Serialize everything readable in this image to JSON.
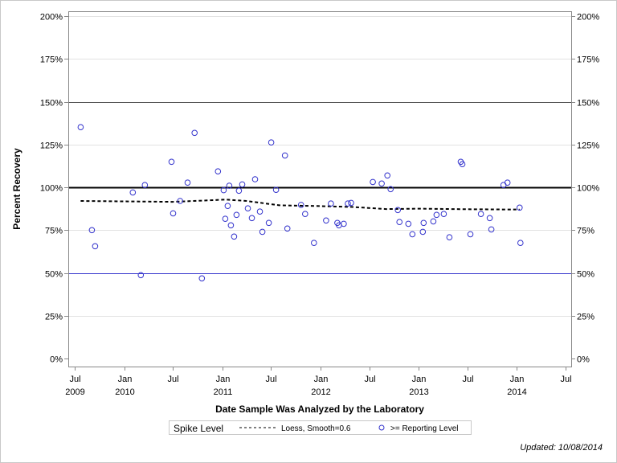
{
  "chart_data": {
    "type": "scatter",
    "title": "",
    "xlabel": "Date Sample Was Analyzed by the Laboratory",
    "ylabel": "Percent Recovery",
    "xlim": [
      "2009-06-01",
      "2014-08-01"
    ],
    "ylim": [
      0,
      200
    ],
    "y_ticks": [
      "0%",
      "25%",
      "50%",
      "75%",
      "100%",
      "125%",
      "150%",
      "175%",
      "200%"
    ],
    "x_ticks": [
      {
        "date": "2009-07-01",
        "month": "Jul",
        "year": "2009"
      },
      {
        "date": "2010-01-01",
        "month": "Jan",
        "year": "2010"
      },
      {
        "date": "2010-07-01",
        "month": "Jul",
        "year": ""
      },
      {
        "date": "2011-01-01",
        "month": "Jan",
        "year": "2011"
      },
      {
        "date": "2011-07-01",
        "month": "Jul",
        "year": ""
      },
      {
        "date": "2012-01-01",
        "month": "Jan",
        "year": "2012"
      },
      {
        "date": "2012-07-01",
        "month": "Jul",
        "year": ""
      },
      {
        "date": "2013-01-01",
        "month": "Jan",
        "year": "2013"
      },
      {
        "date": "2013-07-01",
        "month": "Jul",
        "year": ""
      },
      {
        "date": "2014-01-01",
        "month": "Jan",
        "year": "2014"
      },
      {
        "date": "2014-07-01",
        "month": "Jul",
        "year": ""
      }
    ],
    "grid": true,
    "reference_lines": [
      {
        "value": 150,
        "color": "#555555"
      },
      {
        "value": 100,
        "color": "#000000"
      },
      {
        "value": 50,
        "color": "#3333cc"
      }
    ],
    "series": [
      {
        "name": ">= Reporting Level",
        "type": "scatter",
        "color": "#3333cc",
        "points": [
          [
            "2009-07-23",
            135.1
          ],
          [
            "2009-09-03",
            75.0
          ],
          [
            "2009-09-15",
            65.6
          ],
          [
            "2010-02-02",
            97.0
          ],
          [
            "2010-03-04",
            48.7
          ],
          [
            "2010-03-19",
            101.3
          ],
          [
            "2010-06-26",
            114.9
          ],
          [
            "2010-07-02",
            84.8
          ],
          [
            "2010-07-28",
            92.0
          ],
          [
            "2010-08-25",
            102.7
          ],
          [
            "2010-09-20",
            131.8
          ],
          [
            "2010-10-17",
            46.8
          ],
          [
            "2010-12-16",
            109.3
          ],
          [
            "2011-01-06",
            98.3
          ],
          [
            "2011-01-12",
            81.6
          ],
          [
            "2011-01-21",
            89.1
          ],
          [
            "2011-01-27",
            100.9
          ],
          [
            "2011-02-02",
            77.8
          ],
          [
            "2011-02-14",
            71.2
          ],
          [
            "2011-02-23",
            83.9
          ],
          [
            "2011-03-04",
            98.0
          ],
          [
            "2011-03-16",
            101.7
          ],
          [
            "2011-04-06",
            87.7
          ],
          [
            "2011-04-21",
            82.0
          ],
          [
            "2011-05-03",
            104.7
          ],
          [
            "2011-05-21",
            85.8
          ],
          [
            "2011-05-30",
            74.0
          ],
          [
            "2011-06-23",
            79.2
          ],
          [
            "2011-07-02",
            126.2
          ],
          [
            "2011-07-20",
            98.5
          ],
          [
            "2011-08-22",
            118.6
          ],
          [
            "2011-08-31",
            75.9
          ],
          [
            "2011-10-21",
            89.7
          ],
          [
            "2011-11-05",
            84.4
          ],
          [
            "2011-12-08",
            67.5
          ],
          [
            "2012-01-22",
            80.6
          ],
          [
            "2012-02-09",
            90.5
          ],
          [
            "2012-03-04",
            79.2
          ],
          [
            "2012-03-10",
            77.8
          ],
          [
            "2012-03-28",
            78.7
          ],
          [
            "2012-04-12",
            90.5
          ],
          [
            "2012-04-24",
            90.9
          ],
          [
            "2012-07-14",
            103.1
          ],
          [
            "2012-08-16",
            102.2
          ],
          [
            "2012-09-06",
            106.9
          ],
          [
            "2012-09-18",
            98.9
          ],
          [
            "2012-10-15",
            86.7
          ],
          [
            "2012-10-21",
            79.7
          ],
          [
            "2012-11-23",
            78.7
          ],
          [
            "2012-12-08",
            72.6
          ],
          [
            "2013-01-16",
            74.0
          ],
          [
            "2013-01-19",
            79.2
          ],
          [
            "2013-02-24",
            80.1
          ],
          [
            "2013-03-08",
            83.9
          ],
          [
            "2013-04-04",
            84.4
          ],
          [
            "2013-04-25",
            70.8
          ],
          [
            "2013-06-06",
            114.9
          ],
          [
            "2013-06-12",
            113.5
          ],
          [
            "2013-07-12",
            72.6
          ],
          [
            "2013-08-20",
            84.4
          ],
          [
            "2013-09-22",
            82.0
          ],
          [
            "2013-09-28",
            75.4
          ],
          [
            "2013-11-12",
            101.3
          ],
          [
            "2013-11-27",
            102.7
          ],
          [
            "2014-01-11",
            88.1
          ],
          [
            "2014-01-14",
            67.5
          ]
        ]
      },
      {
        "name": "Loess, Smooth=0.6",
        "type": "line",
        "color": "#000000",
        "points": [
          [
            "2009-07-23",
            92.0
          ],
          [
            "2010-07-01",
            91.5
          ],
          [
            "2011-01-15",
            92.8
          ],
          [
            "2011-04-01",
            92.0
          ],
          [
            "2011-08-01",
            89.5
          ],
          [
            "2012-01-01",
            89.0
          ],
          [
            "2012-05-01",
            88.5
          ],
          [
            "2012-09-01",
            87.3
          ],
          [
            "2013-01-01",
            87.5
          ],
          [
            "2013-07-01",
            87.2
          ],
          [
            "2014-01-11",
            87.0
          ]
        ]
      }
    ],
    "legend": {
      "placement": "bottom",
      "title": "Spike Level",
      "entries": [
        "Loess, Smooth=0.6",
        ">= Reporting Level"
      ]
    }
  },
  "footer": {
    "updated": "Updated: 10/08/2014"
  }
}
